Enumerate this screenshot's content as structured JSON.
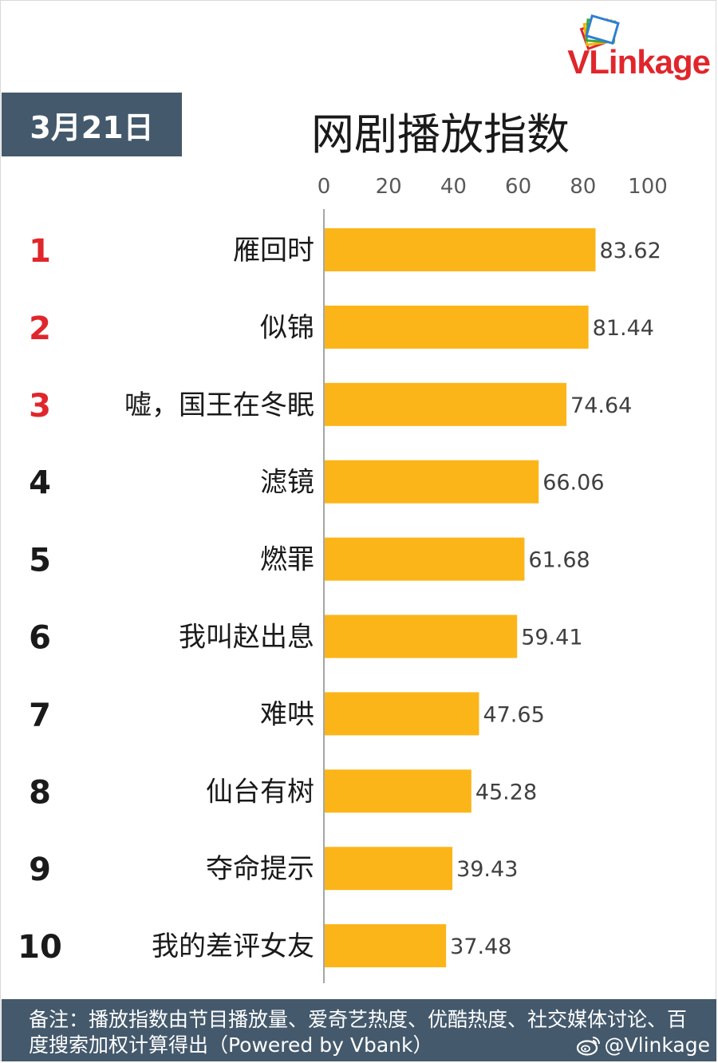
{
  "logo": {
    "text": "VLinkage"
  },
  "date": "3月21日",
  "title": "网剧播放指数",
  "chart_data": {
    "type": "bar",
    "orientation": "horizontal",
    "title": "网剧播放指数",
    "ranks": [
      "1",
      "2",
      "3",
      "4",
      "5",
      "6",
      "7",
      "8",
      "9",
      "10"
    ],
    "categories": [
      "雁回时",
      "似锦",
      "嘘，国王在冬眠",
      "滤镜",
      "燃罪",
      "我叫赵出息",
      "难哄",
      "仙台有树",
      "夺命提示",
      "我的差评女友"
    ],
    "values": [
      83.62,
      81.44,
      74.64,
      66.06,
      61.68,
      59.41,
      47.65,
      45.28,
      39.43,
      37.48
    ],
    "value_labels": [
      "83.62",
      "81.44",
      "74.64",
      "66.06",
      "61.68",
      "59.41",
      "47.65",
      "45.28",
      "39.43",
      "37.48"
    ],
    "xlim": [
      0,
      100
    ],
    "xticks": [
      "0",
      "20",
      "40",
      "60",
      "80",
      "100"
    ],
    "xaxis_position": "top",
    "grid": false,
    "bar_color": "#fbb518",
    "top_rank_color": "#e0262b",
    "rank_color": "#1a1a1a"
  },
  "footer": {
    "note": "备注：播放指数由节目播放量、爱奇艺热度、优酷热度、社交媒体讨论、百度搜索加权计算得出（Powered by Vbank）",
    "weibo": "@Vlinkage"
  }
}
